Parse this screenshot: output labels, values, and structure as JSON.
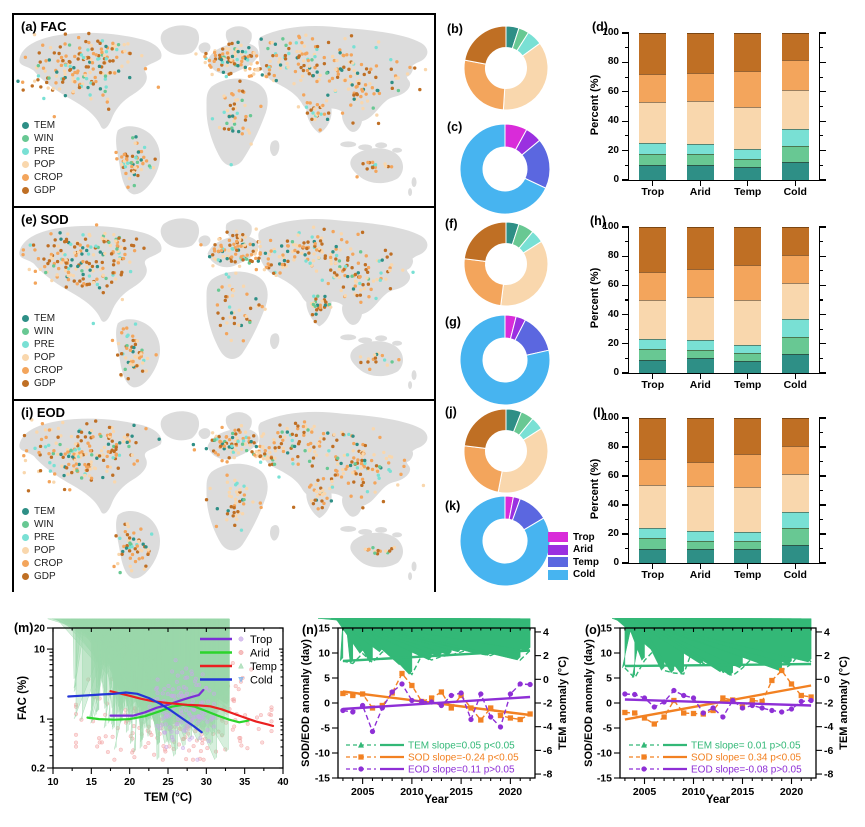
{
  "figure": {
    "factor_labels": [
      "TEM",
      "WIN",
      "PRE",
      "POP",
      "CROP",
      "GDP"
    ],
    "factor_colors": [
      "#2e8f86",
      "#68c893",
      "#79e0d4",
      "#f9d7ad",
      "#f3a55c",
      "#bf6f24"
    ],
    "climate_labels": [
      "Trop",
      "Arid",
      "Temp",
      "Cold"
    ],
    "climate_colors": [
      "#d92bd9",
      "#9a30e0",
      "#5b67e0",
      "#47b4f0"
    ],
    "land_color": "#dcdcdc",
    "dot_weights": [
      0.09,
      0.05,
      0.09,
      0.28,
      0.26,
      0.23
    ],
    "map_clusters": [
      [
        62,
        55,
        46,
        28,
        150
      ],
      [
        100,
        38,
        26,
        12,
        35
      ],
      [
        120,
        148,
        16,
        24,
        55
      ],
      [
        220,
        44,
        26,
        15,
        80
      ],
      [
        290,
        42,
        46,
        20,
        90
      ],
      [
        348,
        68,
        38,
        26,
        85
      ],
      [
        306,
        97,
        14,
        11,
        28
      ],
      [
        224,
        100,
        26,
        30,
        45
      ],
      [
        256,
        57,
        13,
        9,
        18
      ],
      [
        364,
        152,
        20,
        9,
        16
      ]
    ]
  },
  "chart_data": [
    {
      "id": "a",
      "type": "map",
      "panel": "(a) FAC",
      "legend": [
        "TEM",
        "WIN",
        "PRE",
        "POP",
        "CROP",
        "GDP"
      ],
      "seed": 7
    },
    {
      "id": "b",
      "type": "donut",
      "label": "(b)",
      "group": "factor",
      "labels": [
        "TEM",
        "WIN",
        "PRE",
        "POP",
        "CROP",
        "GDP"
      ],
      "values": [
        5,
        4,
        6,
        36,
        27,
        22
      ]
    },
    {
      "id": "c",
      "type": "donut",
      "label": "(c)",
      "group": "climate",
      "labels": [
        "Trop",
        "Arid",
        "Temp",
        "Cold"
      ],
      "values": [
        8,
        6,
        18,
        68
      ]
    },
    {
      "id": "d",
      "type": "stacked-bar",
      "label": "(d)",
      "ylabel": "Percent (%)",
      "ylim": [
        0,
        100
      ],
      "yticks": [
        0,
        20,
        40,
        60,
        80,
        100
      ],
      "categories": [
        "Trop",
        "Arid",
        "Temp",
        "Cold"
      ],
      "series": [
        {
          "name": "TEM",
          "values": [
            10,
            10.5,
            9,
            12
          ]
        },
        {
          "name": "WIN",
          "values": [
            8,
            7,
            5.5,
            11
          ]
        },
        {
          "name": "PRE",
          "values": [
            7.5,
            7,
            6.5,
            11.5
          ]
        },
        {
          "name": "POP",
          "values": [
            27.5,
            29,
            29,
            26.5
          ]
        },
        {
          "name": "CROP",
          "values": [
            19,
            19.5,
            24,
            21
          ]
        },
        {
          "name": "GDP",
          "values": [
            28,
            27,
            26,
            18
          ]
        }
      ]
    },
    {
      "id": "e",
      "type": "map",
      "panel": "(e) SOD",
      "legend": [
        "TEM",
        "WIN",
        "PRE",
        "POP",
        "CROP",
        "GDP"
      ],
      "seed": 19
    },
    {
      "id": "f",
      "type": "donut",
      "label": "(f)",
      "group": "factor",
      "labels": [
        "TEM",
        "WIN",
        "PRE",
        "POP",
        "CROP",
        "GDP"
      ],
      "values": [
        5,
        6,
        5,
        36,
        25,
        23
      ]
    },
    {
      "id": "g",
      "type": "donut",
      "label": "(g)",
      "group": "climate",
      "labels": [
        "Trop",
        "Arid",
        "Temp",
        "Cold"
      ],
      "values": [
        4,
        3.5,
        14,
        78.5
      ]
    },
    {
      "id": "h",
      "type": "stacked-bar",
      "label": "(h)",
      "ylabel": "Percent (%)",
      "ylim": [
        0,
        100
      ],
      "yticks": [
        0,
        20,
        40,
        60,
        80,
        100
      ],
      "categories": [
        "Trop",
        "Arid",
        "Temp",
        "Cold"
      ],
      "series": [
        {
          "name": "TEM",
          "values": [
            9,
            10,
            8.5,
            13
          ]
        },
        {
          "name": "WIN",
          "values": [
            7.5,
            6,
            5,
            12
          ]
        },
        {
          "name": "PRE",
          "values": [
            6.5,
            6.5,
            6,
            12
          ]
        },
        {
          "name": "POP",
          "values": [
            27,
            29.5,
            30.5,
            25
          ]
        },
        {
          "name": "CROP",
          "values": [
            19,
            19,
            24,
            19
          ]
        },
        {
          "name": "GDP",
          "values": [
            31,
            29,
            26,
            19
          ]
        }
      ]
    },
    {
      "id": "i",
      "type": "map",
      "panel": "(i) EOD",
      "legend": [
        "TEM",
        "WIN",
        "PRE",
        "POP",
        "CROP",
        "GDP"
      ],
      "seed": 33
    },
    {
      "id": "j",
      "type": "donut",
      "label": "(j)",
      "group": "factor",
      "labels": [
        "TEM",
        "WIN",
        "PRE",
        "POP",
        "CROP",
        "GDP"
      ],
      "values": [
        6,
        5,
        5,
        37,
        24,
        23
      ]
    },
    {
      "id": "k",
      "type": "donut",
      "label": "(k)",
      "group": "climate",
      "labels": [
        "Trop",
        "Arid",
        "Temp",
        "Cold"
      ],
      "values": [
        3,
        2.5,
        11,
        83.5
      ]
    },
    {
      "id": "l",
      "type": "stacked-bar",
      "label": "(l)",
      "ylabel": "Percent (%)",
      "ylim": [
        0,
        100
      ],
      "yticks": [
        0,
        20,
        40,
        60,
        80,
        100
      ],
      "categories": [
        "Trop",
        "Arid",
        "Temp",
        "Cold"
      ],
      "series": [
        {
          "name": "TEM",
          "values": [
            10,
            9.5,
            10,
            12.5
          ]
        },
        {
          "name": "WIN",
          "values": [
            7.5,
            5.5,
            5,
            11.5
          ]
        },
        {
          "name": "PRE",
          "values": [
            6.5,
            7,
            6.5,
            11
          ]
        },
        {
          "name": "POP",
          "values": [
            30,
            31,
            31,
            26.5
          ]
        },
        {
          "name": "CROP",
          "values": [
            18,
            17,
            22.5,
            19.5
          ]
        },
        {
          "name": "GDP",
          "values": [
            28,
            30,
            25,
            19
          ]
        }
      ]
    },
    {
      "id": "m",
      "type": "scatter",
      "label": "(m)",
      "xlabel": "TEM (°C)",
      "ylabel": "FAC (%)",
      "xlim": [
        10,
        40
      ],
      "ylim_log": [
        0.2,
        20
      ],
      "xticks": [
        10,
        15,
        20,
        25,
        30,
        35,
        40
      ],
      "yticks": [
        0.2,
        1,
        10,
        20
      ],
      "legend": [
        {
          "name": "Trop",
          "line_color": "#7b2fd6",
          "marker": "circle",
          "marker_color": "#c9a9e8"
        },
        {
          "name": "Arid",
          "line_color": "#2bd42b",
          "marker": "circle",
          "marker_color": "#f2a2a2"
        },
        {
          "name": "Temp",
          "line_color": "#ea2020",
          "marker": "triangle-up",
          "marker_color": "#9ad8ab"
        },
        {
          "name": "Cold",
          "line_color": "#2336d6",
          "marker": "triangle-down",
          "marker_color": "#7fb2e8"
        }
      ],
      "lines": {
        "Trop": [
          [
            17.5,
            1.12
          ],
          [
            19,
            1.12
          ],
          [
            20.5,
            1.12
          ],
          [
            22,
            1.25
          ],
          [
            23.5,
            1.45
          ],
          [
            25,
            1.6
          ],
          [
            26,
            1.75
          ],
          [
            27,
            1.9
          ],
          [
            28,
            2.05
          ],
          [
            29,
            2.2
          ],
          [
            29.6,
            2.6
          ]
        ],
        "Arid": [
          [
            14.5,
            1.05
          ],
          [
            16,
            1.0
          ],
          [
            18,
            0.98
          ],
          [
            20,
            1.0
          ],
          [
            22,
            1.1
          ],
          [
            24,
            1.3
          ],
          [
            25.5,
            1.5
          ],
          [
            27,
            1.6
          ],
          [
            28.5,
            1.5
          ],
          [
            30,
            1.3
          ],
          [
            31.5,
            1.12
          ],
          [
            33,
            0.98
          ],
          [
            34.3,
            0.9
          ],
          [
            35.5,
            0.95
          ]
        ],
        "Temp": [
          [
            17.5,
            2.5
          ],
          [
            18.5,
            2.35
          ],
          [
            20,
            2.15
          ],
          [
            21.5,
            1.95
          ],
          [
            23,
            1.8
          ],
          [
            24.5,
            1.72
          ],
          [
            26,
            1.65
          ],
          [
            27.5,
            1.6
          ],
          [
            29,
            1.57
          ],
          [
            30.5,
            1.52
          ],
          [
            32,
            1.38
          ],
          [
            33.5,
            1.2
          ],
          [
            35,
            1.05
          ],
          [
            36.5,
            0.92
          ],
          [
            38,
            0.84
          ],
          [
            38.7,
            0.8
          ]
        ],
        "Cold": [
          [
            12,
            2.1
          ],
          [
            13.5,
            2.15
          ],
          [
            15,
            2.2
          ],
          [
            16.5,
            2.25
          ],
          [
            18,
            2.3
          ],
          [
            19.5,
            2.4
          ],
          [
            21,
            2.3
          ],
          [
            22.5,
            2.0
          ],
          [
            24,
            1.65
          ],
          [
            25.5,
            1.3
          ],
          [
            27,
            1.0
          ],
          [
            28.3,
            0.8
          ],
          [
            29.4,
            0.65
          ]
        ]
      },
      "clusters": [
        {
          "zone": "Arid",
          "marker": "circle",
          "color": "#f2a2a2",
          "n": 250,
          "x_center": 26,
          "x_spread": 6,
          "x_min": 13,
          "x_max": 38.5,
          "logy_center": 0.02,
          "logy_spread": 0.33
        },
        {
          "zone": "Temp",
          "marker": "triangle-up",
          "color": "#9ad8ab",
          "n": 230,
          "x_center": 24,
          "x_spread": 4.8,
          "x_min": 13,
          "x_max": 33,
          "logy_center": 0.15,
          "logy_spread": 0.3
        },
        {
          "zone": "Cold",
          "marker": "triangle-down",
          "color": "#7fb2e8",
          "n": 1000,
          "x_center": 18,
          "x_spread": 3.4,
          "x_min": 11.6,
          "x_max": 27,
          "logy_center": 0.34,
          "logy_spread": 0.17
        },
        {
          "zone": "Trop",
          "marker": "circle",
          "color": "#c9a9e8",
          "n": 130,
          "x_center": 27,
          "x_spread": 2.3,
          "x_min": 22,
          "x_max": 31,
          "logy_center": 0.18,
          "logy_spread": 0.27
        }
      ],
      "seed": 55
    },
    {
      "id": "n",
      "type": "line",
      "label": "(n)",
      "xlabel": "Year",
      "ylabel_left": "SOD/EOD anomaly (day)",
      "ylabel_right": "TEM anomaly (°C)",
      "ylim_left": [
        -15,
        15
      ],
      "yticks_left": [
        -15,
        -10,
        -5,
        0,
        5,
        10,
        15
      ],
      "yticks_right": [
        4,
        2,
        0,
        -2,
        -4,
        -6,
        -8
      ],
      "xticks": [
        2005,
        2010,
        2015,
        2020
      ],
      "years": [
        2003,
        2004,
        2005,
        2006,
        2007,
        2008,
        2009,
        2010,
        2011,
        2012,
        2013,
        2014,
        2015,
        2016,
        2017,
        2018,
        2019,
        2020,
        2021,
        2022
      ],
      "series": [
        {
          "name": "TEM",
          "color": "#33b877",
          "marker": "triangle",
          "legend": "TEM  slope=0.05 p<0.05",
          "trend": [
            8.4,
            10.5
          ],
          "values": [
            8.4,
            7.9,
            9.9,
            8.1,
            10.2,
            10.0,
            7.6,
            5.7,
            9.5,
            8.6,
            9.3,
            9.6,
            10.2,
            10.8,
            9.8,
            9.5,
            10.4,
            13.4,
            8.6,
            10.5
          ]
        },
        {
          "name": "SOD",
          "color": "#f28122",
          "marker": "square",
          "legend": "SOD slope=-0.24 p<0.05",
          "trend": [
            2.3,
            -2.4
          ],
          "values": [
            1.9,
            1.5,
            1.8,
            -1.0,
            -0.5,
            2.0,
            5.9,
            3.5,
            0.3,
            1.0,
            2.2,
            -1.0,
            1.5,
            -1.0,
            -3.4,
            -1.0,
            -2.5,
            -3.0,
            -3.3,
            -2.2
          ]
        },
        {
          "name": "EOD",
          "color": "#8e2fd6",
          "marker": "circle",
          "legend": "EOD slope=0.11  p>0.05",
          "trend": [
            -1.2,
            1.2
          ],
          "values": [
            -1.5,
            -1.8,
            -0.5,
            -5.7,
            -1.0,
            2.2,
            3.8,
            0.5,
            0.3,
            0.2,
            -0.5,
            1.5,
            2.0,
            -3.3,
            1.8,
            -2.8,
            -4.8,
            1.8,
            3.8,
            3.7
          ]
        }
      ]
    },
    {
      "id": "o",
      "type": "line",
      "label": "(o)",
      "xlabel": "Year",
      "ylabel_left": "SOD/EOD anomaly (day)",
      "ylabel_right": "TEM anomaly (°C)",
      "ylim_left": [
        -15,
        15
      ],
      "yticks_left": [
        -15,
        -10,
        -5,
        0,
        5,
        10,
        15
      ],
      "yticks_right": [
        4,
        2,
        0,
        -2,
        -4,
        -6,
        -8
      ],
      "xticks": [
        2005,
        2010,
        2015,
        2020
      ],
      "years": [
        2003,
        2004,
        2005,
        2006,
        2007,
        2008,
        2009,
        2010,
        2011,
        2012,
        2013,
        2014,
        2015,
        2016,
        2017,
        2018,
        2019,
        2020,
        2021,
        2022
      ],
      "series": [
        {
          "name": "TEM",
          "color": "#33b877",
          "marker": "triangle",
          "legend": "TEM  slope= 0.01 p>0.05",
          "trend": [
            7.4,
            7.8
          ],
          "values": [
            7.0,
            5.0,
            8.5,
            10.6,
            6.5,
            6.0,
            5.8,
            11.2,
            7.8,
            9.5,
            6.2,
            5.5,
            7.0,
            9.0,
            8.0,
            8.0,
            6.5,
            7.8,
            10.3,
            8.2
          ]
        },
        {
          "name": "SOD",
          "color": "#f28122",
          "marker": "square",
          "legend": "SOD slope= 0.34 p<0.05",
          "trend": [
            -3.3,
            3.5
          ],
          "values": [
            -1.9,
            -2.0,
            -3.0,
            -4.2,
            -2.8,
            0.5,
            -2.0,
            -2.1,
            -2.2,
            -1.5,
            1.0,
            0.6,
            -0.8,
            0.5,
            0.3,
            4.5,
            6.5,
            3.8,
            1.5,
            1.2
          ]
        },
        {
          "name": "EOD",
          "color": "#8e2fd6",
          "marker": "circle",
          "legend": "EOD slope=-0.08  p>0.05",
          "trend": [
            0.7,
            -0.5
          ],
          "values": [
            1.8,
            1.7,
            1.0,
            -0.8,
            0.2,
            2.5,
            1.5,
            1.0,
            -2.0,
            -1.0,
            -2.8,
            0.5,
            -1.0,
            -0.5,
            -1.0,
            -1.5,
            -1.8,
            -1.2,
            0.3,
            0.5
          ]
        }
      ]
    }
  ]
}
